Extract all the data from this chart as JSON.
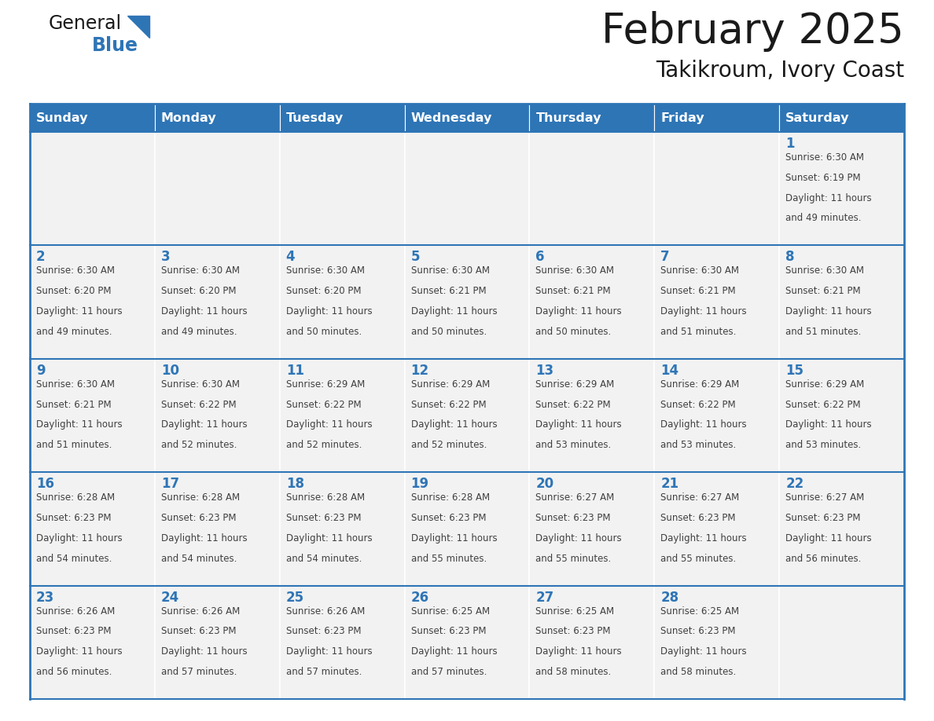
{
  "title": "February 2025",
  "subtitle": "Takikroum, Ivory Coast",
  "header_color": "#2E75B6",
  "header_text_color": "#FFFFFF",
  "grid_line_color": "#2E75B6",
  "day_names": [
    "Sunday",
    "Monday",
    "Tuesday",
    "Wednesday",
    "Thursday",
    "Friday",
    "Saturday"
  ],
  "background_color": "#FFFFFF",
  "cell_bg_even": "#FFFFFF",
  "cell_bg_odd": "#F2F2F2",
  "number_color": "#2E75B6",
  "text_color": "#404040",
  "logo_general_color": "#1a1a1a",
  "logo_blue_color": "#2E75B6",
  "logo_triangle_color": "#2E75B6",
  "title_fontsize": 38,
  "subtitle_fontsize": 20,
  "header_fontsize": 11.5,
  "day_number_fontsize": 12,
  "cell_text_fontsize": 8.5,
  "days": [
    {
      "day": 1,
      "col": 6,
      "row": 0,
      "sunrise": "6:30 AM",
      "sunset": "6:19 PM",
      "daylight_line1": "Daylight: 11 hours",
      "daylight_line2": "and 49 minutes."
    },
    {
      "day": 2,
      "col": 0,
      "row": 1,
      "sunrise": "6:30 AM",
      "sunset": "6:20 PM",
      "daylight_line1": "Daylight: 11 hours",
      "daylight_line2": "and 49 minutes."
    },
    {
      "day": 3,
      "col": 1,
      "row": 1,
      "sunrise": "6:30 AM",
      "sunset": "6:20 PM",
      "daylight_line1": "Daylight: 11 hours",
      "daylight_line2": "and 49 minutes."
    },
    {
      "day": 4,
      "col": 2,
      "row": 1,
      "sunrise": "6:30 AM",
      "sunset": "6:20 PM",
      "daylight_line1": "Daylight: 11 hours",
      "daylight_line2": "and 50 minutes."
    },
    {
      "day": 5,
      "col": 3,
      "row": 1,
      "sunrise": "6:30 AM",
      "sunset": "6:21 PM",
      "daylight_line1": "Daylight: 11 hours",
      "daylight_line2": "and 50 minutes."
    },
    {
      "day": 6,
      "col": 4,
      "row": 1,
      "sunrise": "6:30 AM",
      "sunset": "6:21 PM",
      "daylight_line1": "Daylight: 11 hours",
      "daylight_line2": "and 50 minutes."
    },
    {
      "day": 7,
      "col": 5,
      "row": 1,
      "sunrise": "6:30 AM",
      "sunset": "6:21 PM",
      "daylight_line1": "Daylight: 11 hours",
      "daylight_line2": "and 51 minutes."
    },
    {
      "day": 8,
      "col": 6,
      "row": 1,
      "sunrise": "6:30 AM",
      "sunset": "6:21 PM",
      "daylight_line1": "Daylight: 11 hours",
      "daylight_line2": "and 51 minutes."
    },
    {
      "day": 9,
      "col": 0,
      "row": 2,
      "sunrise": "6:30 AM",
      "sunset": "6:21 PM",
      "daylight_line1": "Daylight: 11 hours",
      "daylight_line2": "and 51 minutes."
    },
    {
      "day": 10,
      "col": 1,
      "row": 2,
      "sunrise": "6:30 AM",
      "sunset": "6:22 PM",
      "daylight_line1": "Daylight: 11 hours",
      "daylight_line2": "and 52 minutes."
    },
    {
      "day": 11,
      "col": 2,
      "row": 2,
      "sunrise": "6:29 AM",
      "sunset": "6:22 PM",
      "daylight_line1": "Daylight: 11 hours",
      "daylight_line2": "and 52 minutes."
    },
    {
      "day": 12,
      "col": 3,
      "row": 2,
      "sunrise": "6:29 AM",
      "sunset": "6:22 PM",
      "daylight_line1": "Daylight: 11 hours",
      "daylight_line2": "and 52 minutes."
    },
    {
      "day": 13,
      "col": 4,
      "row": 2,
      "sunrise": "6:29 AM",
      "sunset": "6:22 PM",
      "daylight_line1": "Daylight: 11 hours",
      "daylight_line2": "and 53 minutes."
    },
    {
      "day": 14,
      "col": 5,
      "row": 2,
      "sunrise": "6:29 AM",
      "sunset": "6:22 PM",
      "daylight_line1": "Daylight: 11 hours",
      "daylight_line2": "and 53 minutes."
    },
    {
      "day": 15,
      "col": 6,
      "row": 2,
      "sunrise": "6:29 AM",
      "sunset": "6:22 PM",
      "daylight_line1": "Daylight: 11 hours",
      "daylight_line2": "and 53 minutes."
    },
    {
      "day": 16,
      "col": 0,
      "row": 3,
      "sunrise": "6:28 AM",
      "sunset": "6:23 PM",
      "daylight_line1": "Daylight: 11 hours",
      "daylight_line2": "and 54 minutes."
    },
    {
      "day": 17,
      "col": 1,
      "row": 3,
      "sunrise": "6:28 AM",
      "sunset": "6:23 PM",
      "daylight_line1": "Daylight: 11 hours",
      "daylight_line2": "and 54 minutes."
    },
    {
      "day": 18,
      "col": 2,
      "row": 3,
      "sunrise": "6:28 AM",
      "sunset": "6:23 PM",
      "daylight_line1": "Daylight: 11 hours",
      "daylight_line2": "and 54 minutes."
    },
    {
      "day": 19,
      "col": 3,
      "row": 3,
      "sunrise": "6:28 AM",
      "sunset": "6:23 PM",
      "daylight_line1": "Daylight: 11 hours",
      "daylight_line2": "and 55 minutes."
    },
    {
      "day": 20,
      "col": 4,
      "row": 3,
      "sunrise": "6:27 AM",
      "sunset": "6:23 PM",
      "daylight_line1": "Daylight: 11 hours",
      "daylight_line2": "and 55 minutes."
    },
    {
      "day": 21,
      "col": 5,
      "row": 3,
      "sunrise": "6:27 AM",
      "sunset": "6:23 PM",
      "daylight_line1": "Daylight: 11 hours",
      "daylight_line2": "and 55 minutes."
    },
    {
      "day": 22,
      "col": 6,
      "row": 3,
      "sunrise": "6:27 AM",
      "sunset": "6:23 PM",
      "daylight_line1": "Daylight: 11 hours",
      "daylight_line2": "and 56 minutes."
    },
    {
      "day": 23,
      "col": 0,
      "row": 4,
      "sunrise": "6:26 AM",
      "sunset": "6:23 PM",
      "daylight_line1": "Daylight: 11 hours",
      "daylight_line2": "and 56 minutes."
    },
    {
      "day": 24,
      "col": 1,
      "row": 4,
      "sunrise": "6:26 AM",
      "sunset": "6:23 PM",
      "daylight_line1": "Daylight: 11 hours",
      "daylight_line2": "and 57 minutes."
    },
    {
      "day": 25,
      "col": 2,
      "row": 4,
      "sunrise": "6:26 AM",
      "sunset": "6:23 PM",
      "daylight_line1": "Daylight: 11 hours",
      "daylight_line2": "and 57 minutes."
    },
    {
      "day": 26,
      "col": 3,
      "row": 4,
      "sunrise": "6:25 AM",
      "sunset": "6:23 PM",
      "daylight_line1": "Daylight: 11 hours",
      "daylight_line2": "and 57 minutes."
    },
    {
      "day": 27,
      "col": 4,
      "row": 4,
      "sunrise": "6:25 AM",
      "sunset": "6:23 PM",
      "daylight_line1": "Daylight: 11 hours",
      "daylight_line2": "and 58 minutes."
    },
    {
      "day": 28,
      "col": 5,
      "row": 4,
      "sunrise": "6:25 AM",
      "sunset": "6:23 PM",
      "daylight_line1": "Daylight: 11 hours",
      "daylight_line2": "and 58 minutes."
    }
  ]
}
